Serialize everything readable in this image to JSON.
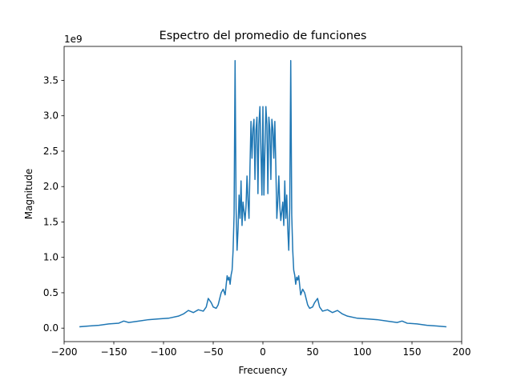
{
  "chart_data": {
    "type": "line",
    "title": "Espectro del promedio de funciones",
    "xlabel": "Frecuency",
    "ylabel": "Magnitude",
    "y_offset_label": "1e9",
    "xlim": [
      -200,
      200
    ],
    "ylim": [
      -0.19,
      3.98
    ],
    "xticks": [
      -200,
      -150,
      -100,
      -50,
      0,
      50,
      100,
      150,
      200
    ],
    "xtick_labels": [
      "−200",
      "−150",
      "−100",
      "−50",
      "0",
      "50",
      "100",
      "150",
      "200"
    ],
    "yticks": [
      0.0,
      0.5,
      1.0,
      1.5,
      2.0,
      2.5,
      3.0,
      3.5
    ],
    "ytick_labels": [
      "0.0",
      "0.5",
      "1.0",
      "1.5",
      "2.0",
      "2.5",
      "3.0",
      "3.5"
    ],
    "grid": false,
    "series": [
      {
        "color": "#1f77b4",
        "x": [
          -184,
          -175,
          -165,
          -155,
          -145,
          -140,
          -135,
          -125,
          -115,
          -105,
          -95,
          -85,
          -80,
          -75,
          -70,
          -65,
          -60,
          -57,
          -55,
          -52,
          -50,
          -47,
          -45,
          -42,
          -40,
          -38,
          -36,
          -35,
          -34,
          -33,
          -32,
          -31,
          -30,
          -29,
          -28,
          -27,
          -26,
          -25,
          -24,
          -23,
          -22,
          -21,
          -20,
          -19,
          -18,
          -17,
          -16,
          -15,
          -14,
          -13,
          -12,
          -11,
          -10,
          -9,
          -8,
          -7,
          -6,
          -5,
          -4,
          -3,
          -2,
          -1,
          0,
          1,
          2,
          3,
          4,
          5,
          6,
          7,
          8,
          9,
          10,
          11,
          12,
          13,
          14,
          15,
          16,
          17,
          18,
          19,
          20,
          21,
          22,
          23,
          24,
          25,
          26,
          27,
          28,
          29,
          30,
          31,
          32,
          33,
          34,
          35,
          36,
          38,
          40,
          42,
          45,
          47,
          50,
          52,
          55,
          57,
          60,
          65,
          70,
          75,
          80,
          85,
          95,
          105,
          115,
          125,
          135,
          140,
          145,
          155,
          165,
          175,
          184
        ],
        "y": [
          0.02,
          0.03,
          0.04,
          0.06,
          0.07,
          0.1,
          0.08,
          0.1,
          0.12,
          0.13,
          0.14,
          0.17,
          0.2,
          0.25,
          0.22,
          0.26,
          0.24,
          0.3,
          0.42,
          0.36,
          0.3,
          0.28,
          0.33,
          0.5,
          0.55,
          0.47,
          0.74,
          0.68,
          0.72,
          0.62,
          0.75,
          0.82,
          1.1,
          1.6,
          3.78,
          1.7,
          1.1,
          1.4,
          1.88,
          1.55,
          2.08,
          1.45,
          1.78,
          1.65,
          1.52,
          1.72,
          2.15,
          1.8,
          1.55,
          2.28,
          2.92,
          2.4,
          2.82,
          2.95,
          2.1,
          2.8,
          2.98,
          1.9,
          2.88,
          3.13,
          2.5,
          1.88,
          3.13,
          1.88,
          2.5,
          3.13,
          2.88,
          1.9,
          2.98,
          2.8,
          2.1,
          2.95,
          2.82,
          2.4,
          2.92,
          2.28,
          1.55,
          1.8,
          2.15,
          1.72,
          1.52,
          1.65,
          1.78,
          1.45,
          2.08,
          1.55,
          1.88,
          1.4,
          1.1,
          1.7,
          3.78,
          1.6,
          1.1,
          0.82,
          0.75,
          0.62,
          0.72,
          0.68,
          0.74,
          0.47,
          0.55,
          0.5,
          0.33,
          0.28,
          0.3,
          0.36,
          0.42,
          0.3,
          0.24,
          0.26,
          0.22,
          0.25,
          0.2,
          0.17,
          0.14,
          0.13,
          0.12,
          0.1,
          0.08,
          0.1,
          0.07,
          0.06,
          0.04,
          0.03,
          0.02
        ]
      }
    ]
  }
}
